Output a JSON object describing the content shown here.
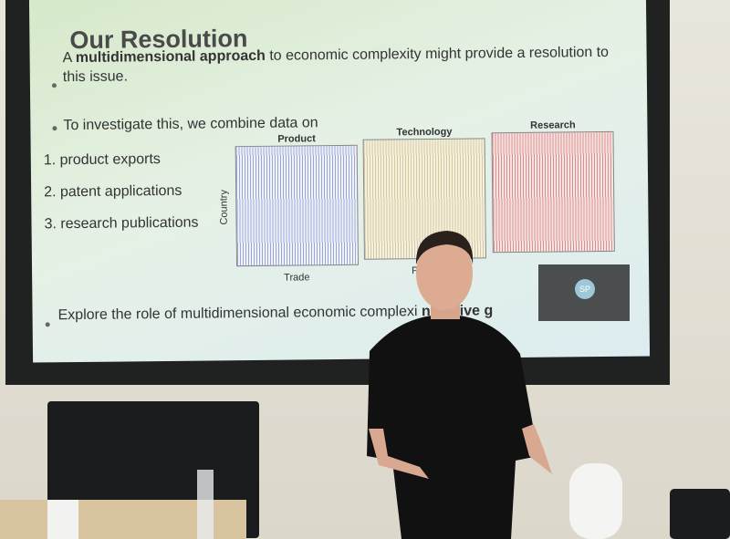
{
  "slide": {
    "title": "Our Resolution",
    "bullet_1": [
      "A ",
      "multidimensional approach",
      " to economic complexity might provide a resolution to this issue."
    ],
    "bullet_2": "To investigate this, we combine data on",
    "list": [
      {
        "number": "1.",
        "text": "product exports"
      },
      {
        "number": "2.",
        "text": "patent applications"
      },
      {
        "number": "3.",
        "text": "research publications"
      }
    ],
    "panels": [
      "Product",
      "Technology",
      "Research"
    ],
    "y_axis_label": "Country",
    "x_labels": [
      "Trade",
      "P"
    ],
    "bullet_3": [
      "Explore the role of multidimensional economic complexi",
      "nclusive g"
    ]
  },
  "video_call": {
    "initials": "SP"
  }
}
